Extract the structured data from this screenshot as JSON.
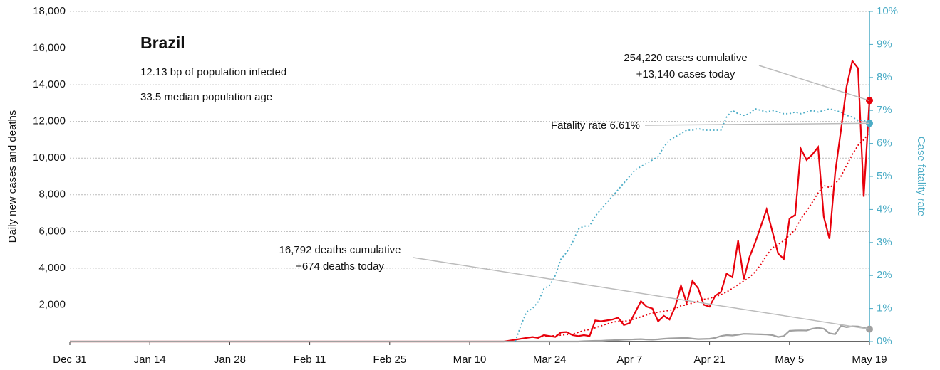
{
  "chart_data": {
    "type": "line",
    "title": "Brazil",
    "notes": [
      "12.13 bp of population infected",
      "33.5 median population age"
    ],
    "ylabel": "Daily new cases and deaths",
    "y2label": "Case fatality rate",
    "annotations": [
      {
        "lines": [
          "254,220 cases cumulative",
          "+13,140 cases today"
        ],
        "series": 0
      },
      {
        "lines": [
          "Fatality rate 6.61%"
        ],
        "series": 3
      },
      {
        "lines": [
          "16,792 deaths cumulative",
          "+674 deaths today"
        ],
        "series": 2
      }
    ],
    "xlim": [
      0,
      140
    ],
    "xticks": [
      {
        "value": 0,
        "label": "Dec 31"
      },
      {
        "value": 14,
        "label": "Jan 14"
      },
      {
        "value": 28,
        "label": "Jan 28"
      },
      {
        "value": 42,
        "label": "Feb 11"
      },
      {
        "value": 56,
        "label": "Feb 25"
      },
      {
        "value": 70,
        "label": "Mar 10"
      },
      {
        "value": 84,
        "label": "Mar 24"
      },
      {
        "value": 98,
        "label": "Apr 7"
      },
      {
        "value": 112,
        "label": "Apr 21"
      },
      {
        "value": 126,
        "label": "May 5"
      },
      {
        "value": 140,
        "label": "May 19"
      }
    ],
    "ylim": [
      0,
      18000
    ],
    "yticks": [
      {
        "value": 2000,
        "label": "2,000"
      },
      {
        "value": 4000,
        "label": "4,000"
      },
      {
        "value": 6000,
        "label": "6,000"
      },
      {
        "value": 8000,
        "label": "8,000"
      },
      {
        "value": 10000,
        "label": "10,000"
      },
      {
        "value": 12000,
        "label": "12,000"
      },
      {
        "value": 14000,
        "label": "14,000"
      },
      {
        "value": 16000,
        "label": "16,000"
      },
      {
        "value": 18000,
        "label": "18,000"
      }
    ],
    "y2lim": [
      0,
      10
    ],
    "y2ticks": [
      {
        "value": 0,
        "label": "0%"
      },
      {
        "value": 1,
        "label": "1%"
      },
      {
        "value": 2,
        "label": "2%"
      },
      {
        "value": 3,
        "label": "3%"
      },
      {
        "value": 4,
        "label": "4%"
      },
      {
        "value": 5,
        "label": "5%"
      },
      {
        "value": 6,
        "label": "6%"
      },
      {
        "value": 7,
        "label": "7%"
      },
      {
        "value": 8,
        "label": "8%"
      },
      {
        "value": 9,
        "label": "9%"
      },
      {
        "value": 10,
        "label": "10%"
      }
    ],
    "grid": true,
    "x": [
      0,
      1,
      2,
      3,
      4,
      5,
      6,
      7,
      8,
      9,
      10,
      11,
      12,
      13,
      14,
      15,
      16,
      17,
      18,
      19,
      20,
      21,
      22,
      23,
      24,
      25,
      26,
      27,
      28,
      29,
      30,
      31,
      32,
      33,
      34,
      35,
      36,
      37,
      38,
      39,
      40,
      41,
      42,
      43,
      44,
      45,
      46,
      47,
      48,
      49,
      50,
      51,
      52,
      53,
      54,
      55,
      56,
      57,
      58,
      59,
      60,
      61,
      62,
      63,
      64,
      65,
      66,
      67,
      68,
      69,
      70,
      71,
      72,
      73,
      74,
      75,
      76,
      77,
      78,
      79,
      80,
      81,
      82,
      83,
      84,
      85,
      86,
      87,
      88,
      89,
      90,
      91,
      92,
      93,
      94,
      95,
      96,
      97,
      98,
      99,
      100,
      101,
      102,
      103,
      104,
      105,
      106,
      107,
      108,
      109,
      110,
      111,
      112,
      113,
      114,
      115,
      116,
      117,
      118,
      119,
      120,
      121,
      122,
      123,
      124,
      125,
      126,
      127,
      128,
      129,
      130,
      131,
      132,
      133,
      134,
      135,
      136,
      137,
      138,
      139,
      140
    ],
    "series": [
      {
        "name": "cases",
        "color": "#e8000b",
        "style": "solid",
        "marker": true,
        "values": [
          0,
          0,
          0,
          0,
          0,
          0,
          0,
          0,
          0,
          0,
          0,
          0,
          0,
          0,
          0,
          0,
          0,
          0,
          0,
          0,
          0,
          0,
          0,
          0,
          0,
          0,
          0,
          0,
          0,
          0,
          0,
          0,
          0,
          0,
          0,
          0,
          0,
          0,
          0,
          0,
          0,
          0,
          0,
          0,
          0,
          0,
          0,
          0,
          0,
          0,
          0,
          0,
          0,
          0,
          0,
          0,
          0,
          0,
          0,
          0,
          0,
          0,
          0,
          0,
          0,
          0,
          0,
          0,
          0,
          0,
          0,
          0,
          0,
          0,
          0,
          0,
          0,
          50,
          100,
          150,
          200,
          250,
          200,
          350,
          300,
          250,
          500,
          520,
          350,
          300,
          350,
          300,
          1150,
          1100,
          1150,
          1200,
          1300,
          900,
          1000,
          1600,
          2200,
          1900,
          1800,
          1100,
          1400,
          1200,
          1900,
          3050,
          2100,
          3300,
          2900,
          2000,
          1900,
          2500,
          2700,
          3700,
          3500,
          5500,
          3400,
          4600,
          5400,
          6300,
          7200,
          6000,
          4800,
          4500,
          6700,
          6900,
          10500,
          9900,
          10200,
          10600,
          6800,
          5600,
          9200,
          11500,
          13900,
          15300,
          14900,
          7900,
          13140
        ]
      },
      {
        "name": "cases trend",
        "color": "#e8000b",
        "style": "dotted",
        "marker": false,
        "values": [
          null,
          null,
          null,
          null,
          null,
          null,
          null,
          null,
          null,
          null,
          null,
          null,
          null,
          null,
          null,
          null,
          null,
          null,
          null,
          null,
          null,
          null,
          null,
          null,
          null,
          null,
          null,
          null,
          null,
          null,
          null,
          null,
          null,
          null,
          null,
          null,
          null,
          null,
          null,
          null,
          null,
          null,
          null,
          null,
          null,
          null,
          null,
          null,
          null,
          null,
          null,
          null,
          null,
          null,
          null,
          null,
          null,
          null,
          null,
          null,
          null,
          null,
          null,
          null,
          null,
          null,
          null,
          null,
          null,
          null,
          null,
          null,
          null,
          null,
          null,
          null,
          null,
          null,
          null,
          null,
          null,
          null,
          250,
          270,
          300,
          320,
          350,
          380,
          400,
          500,
          600,
          650,
          750,
          850,
          950,
          1050,
          1100,
          1100,
          1150,
          1250,
          1350,
          1450,
          1550,
          1600,
          1650,
          1700,
          1800,
          1950,
          2000,
          2100,
          2200,
          2300,
          2350,
          2450,
          2550,
          2700,
          2900,
          3100,
          3300,
          3500,
          3800,
          4200,
          4700,
          5100,
          5300,
          5500,
          5800,
          6100,
          6700,
          7100,
          7600,
          8100,
          8500,
          8400,
          8600,
          9000,
          9600,
          10200,
          10700,
          11000,
          11400
        ]
      },
      {
        "name": "deaths",
        "color": "#a0a0a0",
        "style": "solid",
        "marker": true,
        "values": [
          0,
          0,
          0,
          0,
          0,
          0,
          0,
          0,
          0,
          0,
          0,
          0,
          0,
          0,
          0,
          0,
          0,
          0,
          0,
          0,
          0,
          0,
          0,
          0,
          0,
          0,
          0,
          0,
          0,
          0,
          0,
          0,
          0,
          0,
          0,
          0,
          0,
          0,
          0,
          0,
          0,
          0,
          0,
          0,
          0,
          0,
          0,
          0,
          0,
          0,
          0,
          0,
          0,
          0,
          0,
          0,
          0,
          0,
          0,
          0,
          0,
          0,
          0,
          0,
          0,
          0,
          0,
          0,
          0,
          0,
          0,
          0,
          0,
          0,
          0,
          0,
          0,
          0,
          0,
          0,
          0,
          0,
          0,
          0,
          0,
          0,
          0,
          0,
          0,
          0,
          20,
          30,
          40,
          40,
          60,
          70,
          80,
          100,
          110,
          120,
          130,
          110,
          100,
          120,
          150,
          170,
          180,
          190,
          200,
          160,
          130,
          140,
          150,
          200,
          300,
          350,
          330,
          370,
          420,
          410,
          400,
          390,
          380,
          350,
          250,
          300,
          580,
          600,
          610,
          600,
          700,
          750,
          700,
          450,
          400,
          850,
          780,
          830,
          820,
          750,
          674
        ]
      },
      {
        "name": "fatality rate",
        "color": "#4bacc6",
        "style": "dotted",
        "marker": true,
        "axis": "y2",
        "values": [
          null,
          null,
          null,
          null,
          null,
          null,
          null,
          null,
          null,
          null,
          null,
          null,
          null,
          null,
          null,
          null,
          null,
          null,
          null,
          null,
          null,
          null,
          null,
          null,
          null,
          null,
          null,
          null,
          null,
          null,
          null,
          null,
          null,
          null,
          null,
          null,
          null,
          null,
          null,
          null,
          null,
          null,
          null,
          null,
          null,
          null,
          null,
          null,
          null,
          null,
          null,
          null,
          null,
          null,
          null,
          null,
          null,
          null,
          null,
          null,
          null,
          null,
          null,
          null,
          null,
          null,
          null,
          null,
          null,
          null,
          null,
          null,
          null,
          null,
          null,
          null,
          null,
          null,
          0,
          0.5,
          0.9,
          1.0,
          1.2,
          1.6,
          1.7,
          2.0,
          2.5,
          2.7,
          3.0,
          3.4,
          3.5,
          3.5,
          3.8,
          4.0,
          4.2,
          4.4,
          4.6,
          4.8,
          5.0,
          5.2,
          5.3,
          5.4,
          5.5,
          5.6,
          5.9,
          6.1,
          6.2,
          6.3,
          6.4,
          6.4,
          6.45,
          6.4,
          6.4,
          6.4,
          6.4,
          6.8,
          7.0,
          6.9,
          6.85,
          6.9,
          7.05,
          7.0,
          6.95,
          7.0,
          6.95,
          6.9,
          6.9,
          6.95,
          6.9,
          6.95,
          7.0,
          6.95,
          7.0,
          7.05,
          7.0,
          6.95,
          6.85,
          6.8,
          6.7,
          6.7,
          6.61
        ]
      }
    ]
  }
}
